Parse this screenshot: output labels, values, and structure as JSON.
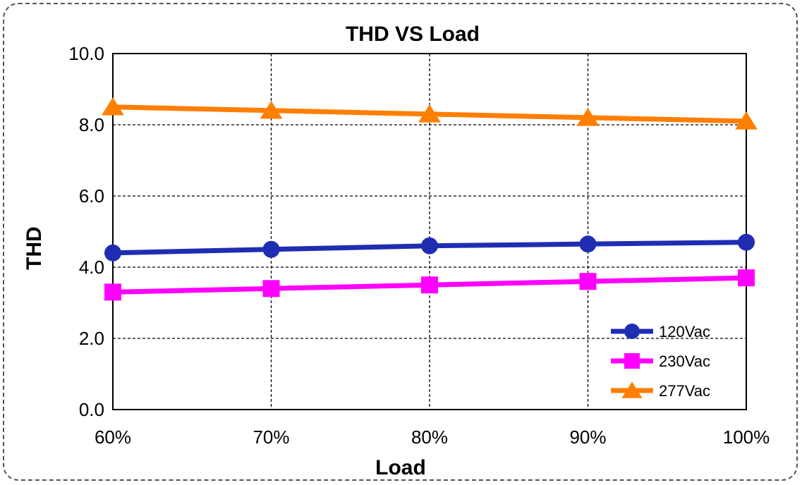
{
  "chart_data": {
    "type": "line",
    "title": "THD  VS  Load",
    "xlabel": "Load",
    "ylabel": "THD",
    "categories": [
      "60%",
      "70%",
      "80%",
      "90%",
      "100%"
    ],
    "ylim": [
      0,
      10
    ],
    "yticks": [
      "0.0",
      "2.0",
      "4.0",
      "6.0",
      "8.0",
      "10.0"
    ],
    "grid": true,
    "legend_position": "bottom-right",
    "series": [
      {
        "name": "120Vac",
        "values": [
          4.4,
          4.5,
          4.6,
          4.65,
          4.7
        ],
        "color": "#1F2DB3",
        "marker": "circle"
      },
      {
        "name": "230Vac",
        "values": [
          3.3,
          3.4,
          3.5,
          3.6,
          3.7
        ],
        "color": "#FF00FF",
        "marker": "square"
      },
      {
        "name": "277Vac",
        "values": [
          8.5,
          8.4,
          8.3,
          8.2,
          8.1
        ],
        "color": "#FF7F00",
        "marker": "triangle"
      }
    ]
  }
}
